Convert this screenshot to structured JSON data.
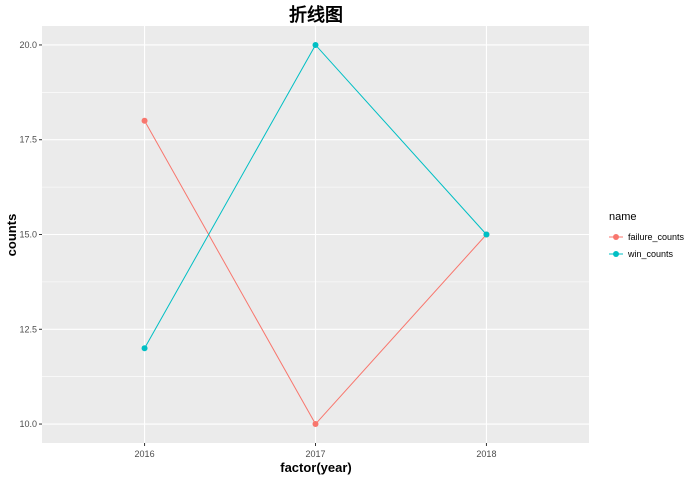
{
  "chart_data": {
    "type": "line",
    "title": "折线图",
    "xlabel": "factor(year)",
    "ylabel": "counts",
    "categories": [
      "2016",
      "2017",
      "2018"
    ],
    "yticks": [
      10.0,
      12.5,
      15.0,
      17.5,
      20.0
    ],
    "ytick_labels": [
      "10.0",
      "12.5",
      "15.0",
      "17.5",
      "20.0"
    ],
    "ylim": [
      9.5,
      20.5
    ],
    "grid": true,
    "legend": {
      "title": "name",
      "position": "right"
    },
    "series": [
      {
        "name": "failure_counts",
        "x": [
          "2016",
          "2017",
          "2018"
        ],
        "values": [
          18,
          10,
          15
        ],
        "color": "#F8766D"
      },
      {
        "name": "win_counts",
        "x": [
          "2016",
          "2017",
          "2018"
        ],
        "values": [
          12,
          20,
          15
        ],
        "color": "#00BFC4"
      }
    ],
    "panel_color": "#EBEBEB",
    "grid_color": "#FFFFFF"
  }
}
